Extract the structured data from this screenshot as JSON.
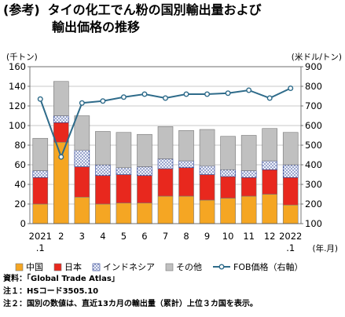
{
  "title": {
    "prefix": "(参考)",
    "line1": "タイの化工でん粉の国別輸出量および",
    "line2": "輸出価格の推移"
  },
  "notes": [
    "資料：「Global Trade Atlas」",
    "注１：HSコード3505.10",
    "注２：国別の数値は、直近13カ月の輸出量（累計）上位３カ国を表示。"
  ],
  "chart_data": {
    "type": "bar",
    "stacked": true,
    "left_unit": "(千トン)",
    "right_unit": "(米ドル/トン)",
    "x_unit": "(年.月)",
    "categories": [
      {
        "top": "2021",
        "bottom": ".1"
      },
      {
        "top": "2",
        "bottom": ""
      },
      {
        "top": "3",
        "bottom": ""
      },
      {
        "top": "4",
        "bottom": ""
      },
      {
        "top": "5",
        "bottom": ""
      },
      {
        "top": "6",
        "bottom": ""
      },
      {
        "top": "7",
        "bottom": ""
      },
      {
        "top": "8",
        "bottom": ""
      },
      {
        "top": "9",
        "bottom": ""
      },
      {
        "top": "10",
        "bottom": ""
      },
      {
        "top": "11",
        "bottom": ""
      },
      {
        "top": "12",
        "bottom": ""
      },
      {
        "top": "2022",
        "bottom": ".1"
      }
    ],
    "ylim_left": [
      0,
      160
    ],
    "yticks_left": [
      0,
      20,
      40,
      60,
      80,
      100,
      120,
      140,
      160
    ],
    "ylim_right": [
      100,
      900
    ],
    "yticks_right": [
      100,
      200,
      300,
      400,
      500,
      600,
      700,
      800,
      900
    ],
    "grid": true,
    "legend_position": "bottom",
    "series": [
      {
        "name": "中国",
        "color": "#f5a623",
        "pattern": "solid",
        "values": [
          20,
          83,
          27,
          20,
          21,
          21,
          28,
          28,
          24,
          26,
          28,
          30,
          19
        ]
      },
      {
        "name": "日本",
        "color": "#e8281e",
        "pattern": "solid",
        "values": [
          27,
          20,
          31,
          29,
          29,
          28,
          28,
          29,
          26,
          22,
          19,
          25,
          28
        ]
      },
      {
        "name": "インドネシア",
        "color": "#c7d0ea",
        "pattern": "dots",
        "values": [
          7,
          7,
          17,
          11,
          7,
          9,
          10,
          7,
          9,
          7,
          7,
          9,
          13
        ]
      },
      {
        "name": "その他",
        "color": "#c0c0c0",
        "pattern": "solid",
        "values": [
          33,
          35,
          35,
          34,
          36,
          33,
          33,
          31,
          37,
          34,
          36,
          33,
          33
        ]
      }
    ],
    "line_series": {
      "name": "FOB価格（右軸）",
      "color": "#2e6b8a",
      "axis": "right",
      "values": [
        735,
        440,
        715,
        725,
        745,
        760,
        740,
        760,
        760,
        765,
        780,
        740,
        790
      ]
    }
  }
}
